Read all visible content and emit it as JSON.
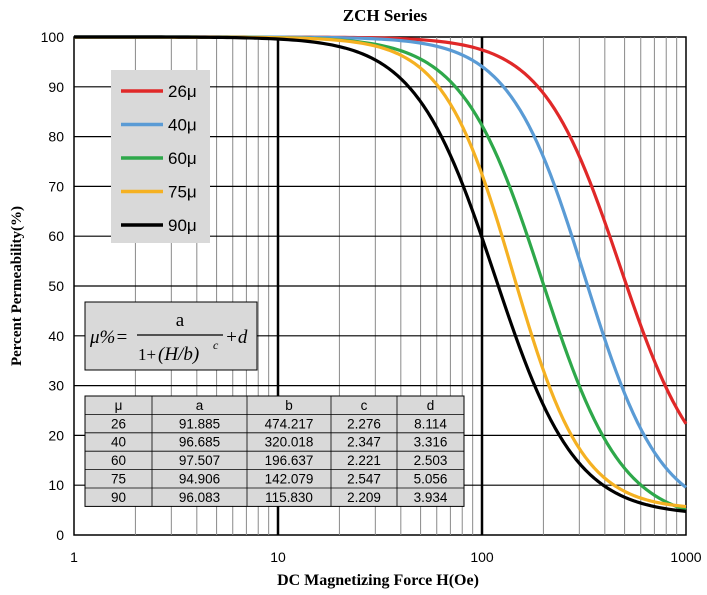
{
  "chart_data": {
    "type": "line",
    "title": "ZCH Series",
    "xlabel": "DC Magnetizing Force H(Oe)",
    "ylabel": "Percent Permeability(%)",
    "xscale": "log",
    "xlim": [
      1,
      1000
    ],
    "ylim": [
      0,
      100
    ],
    "x_ticks": [
      "1",
      "10",
      "100",
      "1000"
    ],
    "y_ticks": [
      "0",
      "10",
      "20",
      "30",
      "40",
      "50",
      "60",
      "70",
      "80",
      "90",
      "100"
    ],
    "grid": true,
    "legend_position": "top-left",
    "formula": {
      "lhs": "μ%=",
      "numerator": "a",
      "denominator_prefix": "1+",
      "denominator_term": "(H/b)",
      "exponent": "c",
      "suffix": "+d"
    },
    "series": [
      {
        "name": "26μ",
        "color": "#e02828",
        "a": 91.885,
        "b": 474.217,
        "c": 2.276,
        "d": 8.114
      },
      {
        "name": "40μ",
        "color": "#5a9bd5",
        "a": 96.685,
        "b": 320.018,
        "c": 2.347,
        "d": 3.316
      },
      {
        "name": "60μ",
        "color": "#2ea84a",
        "a": 97.507,
        "b": 196.637,
        "c": 2.221,
        "d": 2.503
      },
      {
        "name": "75μ",
        "color": "#f5b122",
        "a": 94.906,
        "b": 142.079,
        "c": 2.547,
        "d": 5.056
      },
      {
        "name": "90μ",
        "color": "#000000",
        "a": 96.083,
        "b": 115.83,
        "c": 2.209,
        "d": 3.934
      }
    ],
    "table": {
      "headers": [
        "μ",
        "a",
        "b",
        "c",
        "d"
      ],
      "rows": [
        [
          "26",
          "91.885",
          "474.217",
          "2.276",
          "8.114"
        ],
        [
          "40",
          "96.685",
          "320.018",
          "2.347",
          "3.316"
        ],
        [
          "60",
          "97.507",
          "196.637",
          "2.221",
          "2.503"
        ],
        [
          "75",
          "94.906",
          "142.079",
          "2.547",
          "5.056"
        ],
        [
          "90",
          "96.083",
          "115.830",
          "2.209",
          "3.934"
        ]
      ]
    }
  }
}
